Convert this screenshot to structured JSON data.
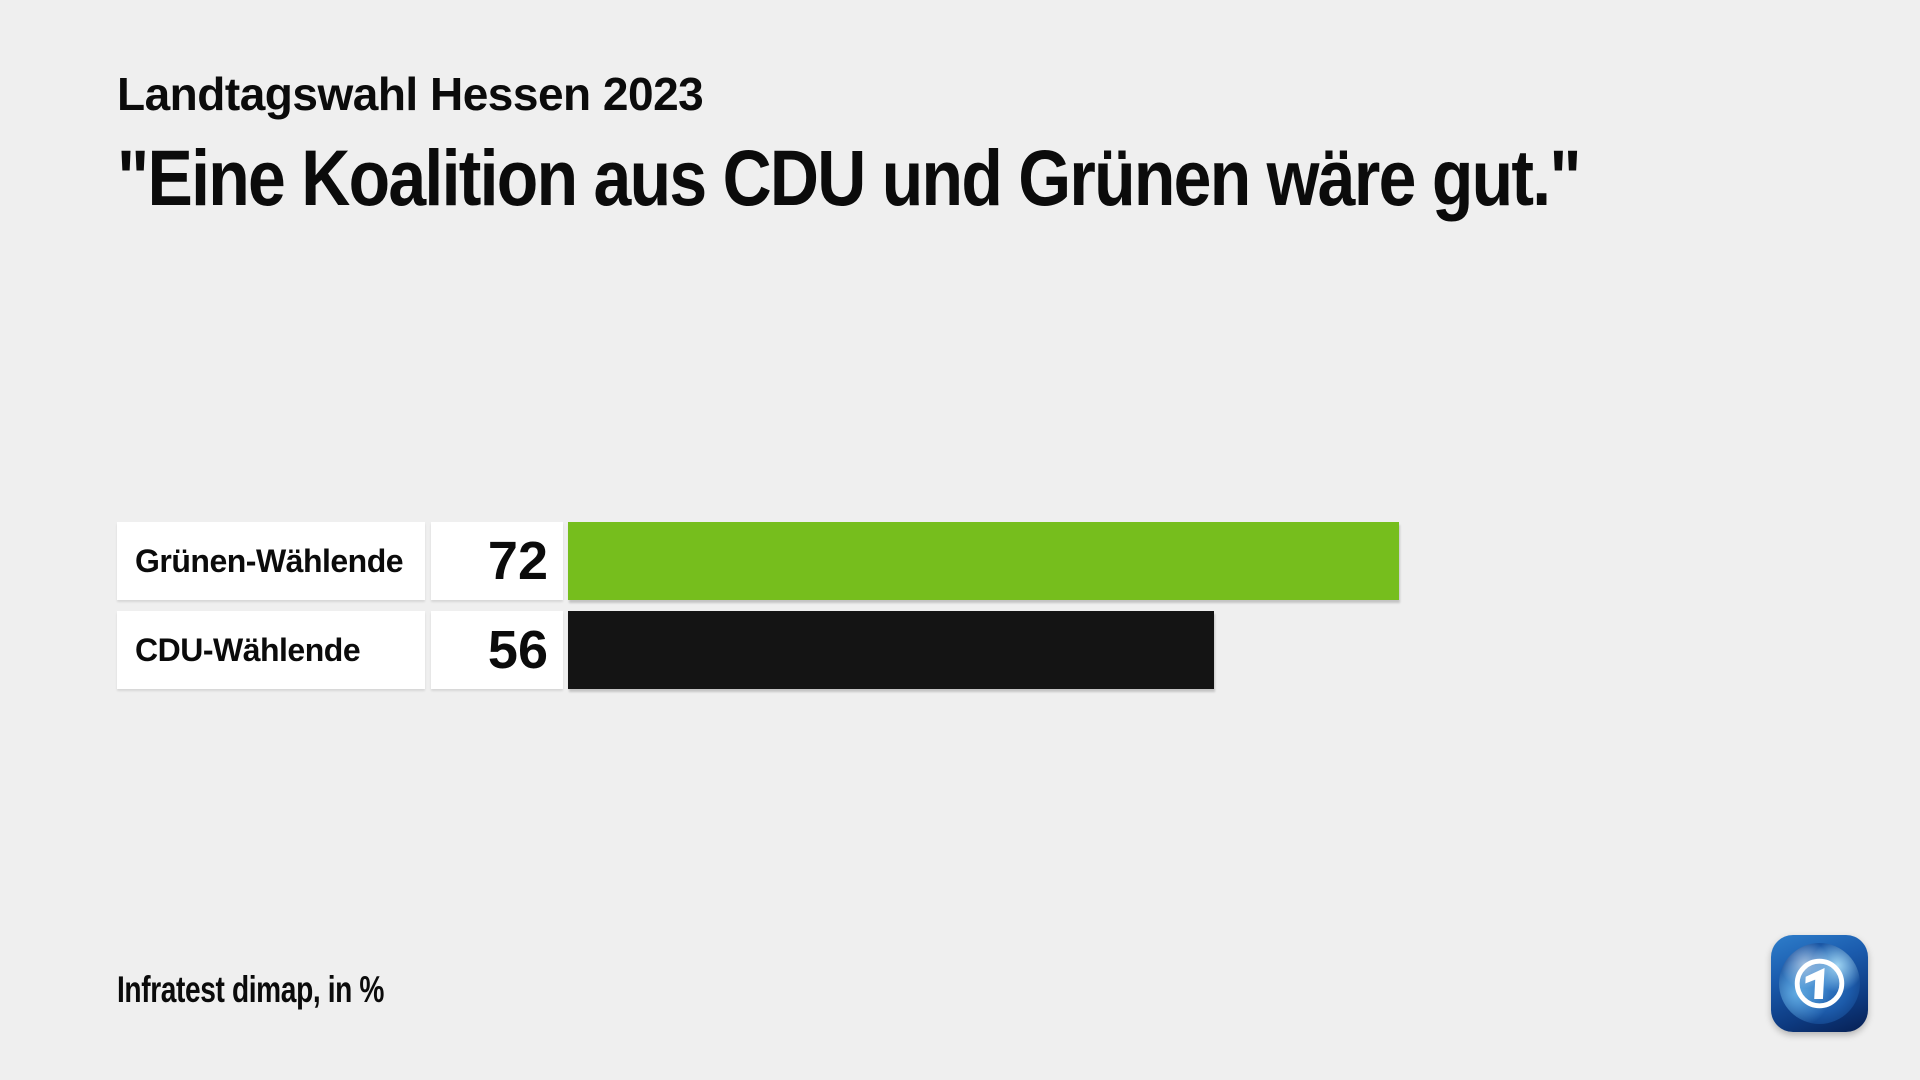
{
  "header": {
    "kicker": "Landtagswahl Hessen 2023",
    "title": "\"Eine Koalition aus CDU und Grünen wäre gut.\""
  },
  "chart_data": {
    "type": "bar",
    "orientation": "horizontal",
    "title": "\"Eine Koalition aus CDU und Grünen wäre gut.\"",
    "subtitle": "Landtagswahl Hessen 2023",
    "categories": [
      "Grünen-Wählende",
      "CDU-Wählende"
    ],
    "values": [
      72,
      56
    ],
    "bar_colors": [
      "#76BE1D",
      "#141414"
    ],
    "unit": "%",
    "xlim": [
      0,
      100
    ],
    "grid": false,
    "legend": false,
    "value_label_position": "left-of-bar",
    "source": "Infratest dimap, in %"
  },
  "footer": {
    "source": "Infratest dimap, in %"
  },
  "logo": {
    "name": "ARD tagesschau logo",
    "numeral": "1",
    "brand_blue_light": "#2e7ecb",
    "brand_blue_dark": "#071f52"
  },
  "colors": {
    "background": "#efefef",
    "text": "#0b0b0b",
    "cell_background": "#ffffff",
    "bar_green": "#76BE1D",
    "bar_black": "#141414"
  }
}
